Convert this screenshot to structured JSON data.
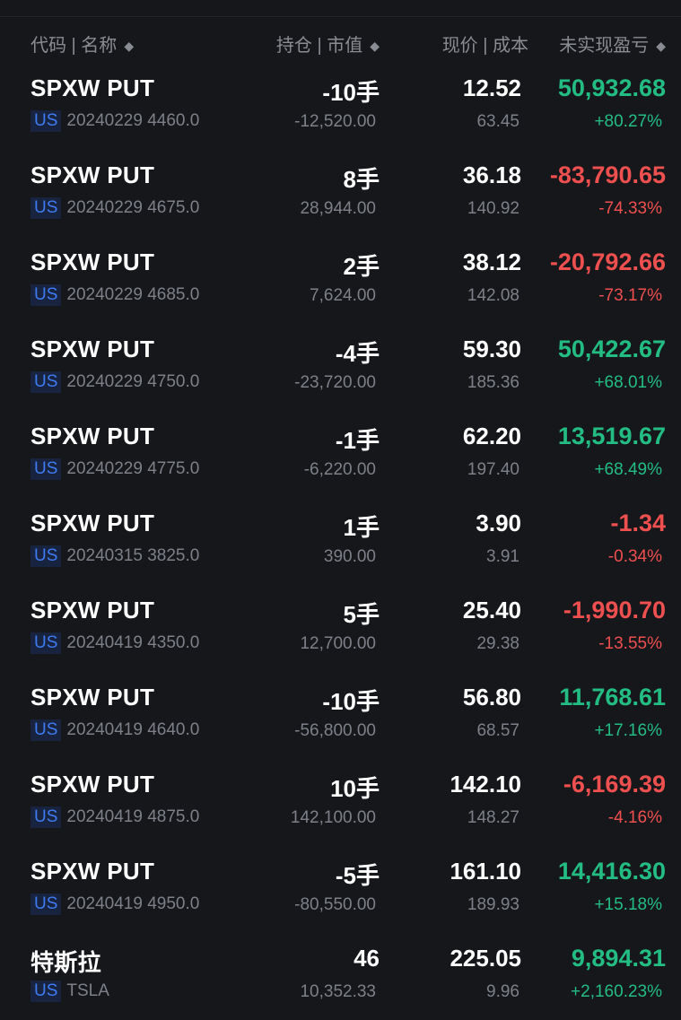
{
  "header": {
    "name_label": "代码 | 名称",
    "position_label": "持仓 | 市值",
    "price_label": "现价 | 成本",
    "pl_label": "未实现盈亏",
    "sort_glyph": "◆"
  },
  "colors": {
    "gain": "#23bd84",
    "loss": "#ee4f4f",
    "market_tag": "#3f7bf0"
  },
  "positions": [
    {
      "name": "SPXW PUT",
      "market": "US",
      "detail": "20240229 4460.0",
      "quantity": "-10手",
      "market_value": "-12,520.00",
      "price": "12.52",
      "cost": "63.45",
      "pl": "50,932.68",
      "pl_pct": "+80.27%",
      "trend": "gain"
    },
    {
      "name": "SPXW PUT",
      "market": "US",
      "detail": "20240229 4675.0",
      "quantity": "8手",
      "market_value": "28,944.00",
      "price": "36.18",
      "cost": "140.92",
      "pl": "-83,790.65",
      "pl_pct": "-74.33%",
      "trend": "loss"
    },
    {
      "name": "SPXW PUT",
      "market": "US",
      "detail": "20240229 4685.0",
      "quantity": "2手",
      "market_value": "7,624.00",
      "price": "38.12",
      "cost": "142.08",
      "pl": "-20,792.66",
      "pl_pct": "-73.17%",
      "trend": "loss"
    },
    {
      "name": "SPXW PUT",
      "market": "US",
      "detail": "20240229 4750.0",
      "quantity": "-4手",
      "market_value": "-23,720.00",
      "price": "59.30",
      "cost": "185.36",
      "pl": "50,422.67",
      "pl_pct": "+68.01%",
      "trend": "gain"
    },
    {
      "name": "SPXW PUT",
      "market": "US",
      "detail": "20240229 4775.0",
      "quantity": "-1手",
      "market_value": "-6,220.00",
      "price": "62.20",
      "cost": "197.40",
      "pl": "13,519.67",
      "pl_pct": "+68.49%",
      "trend": "gain"
    },
    {
      "name": "SPXW PUT",
      "market": "US",
      "detail": "20240315 3825.0",
      "quantity": "1手",
      "market_value": "390.00",
      "price": "3.90",
      "cost": "3.91",
      "pl": "-1.34",
      "pl_pct": "-0.34%",
      "trend": "loss"
    },
    {
      "name": "SPXW PUT",
      "market": "US",
      "detail": "20240419 4350.0",
      "quantity": "5手",
      "market_value": "12,700.00",
      "price": "25.40",
      "cost": "29.38",
      "pl": "-1,990.70",
      "pl_pct": "-13.55%",
      "trend": "loss"
    },
    {
      "name": "SPXW PUT",
      "market": "US",
      "detail": "20240419 4640.0",
      "quantity": "-10手",
      "market_value": "-56,800.00",
      "price": "56.80",
      "cost": "68.57",
      "pl": "11,768.61",
      "pl_pct": "+17.16%",
      "trend": "gain"
    },
    {
      "name": "SPXW PUT",
      "market": "US",
      "detail": "20240419 4875.0",
      "quantity": "10手",
      "market_value": "142,100.00",
      "price": "142.10",
      "cost": "148.27",
      "pl": "-6,169.39",
      "pl_pct": "-4.16%",
      "trend": "loss"
    },
    {
      "name": "SPXW PUT",
      "market": "US",
      "detail": "20240419 4950.0",
      "quantity": "-5手",
      "market_value": "-80,550.00",
      "price": "161.10",
      "cost": "189.93",
      "pl": "14,416.30",
      "pl_pct": "+15.18%",
      "trend": "gain"
    },
    {
      "name": "特斯拉",
      "market": "US",
      "detail": "TSLA",
      "quantity": "46",
      "market_value": "10,352.33",
      "price": "225.05",
      "cost": "9.96",
      "pl": "9,894.31",
      "pl_pct": "+2,160.23%",
      "trend": "gain"
    }
  ]
}
